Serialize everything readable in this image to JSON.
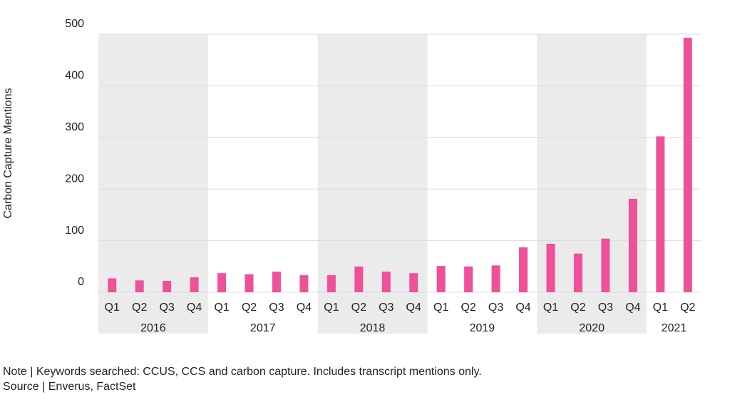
{
  "chart_data": {
    "type": "bar",
    "y_label": "Carbon Capture Mentions",
    "groups": [
      {
        "label": "2016",
        "categories": [
          "Q1",
          "Q2",
          "Q3",
          "Q4"
        ]
      },
      {
        "label": "2017",
        "categories": [
          "Q1",
          "Q2",
          "Q3",
          "Q4"
        ]
      },
      {
        "label": "2018",
        "categories": [
          "Q1",
          "Q2",
          "Q3",
          "Q4"
        ]
      },
      {
        "label": "2019",
        "categories": [
          "Q1",
          "Q2",
          "Q3",
          "Q4"
        ]
      },
      {
        "label": "2020",
        "categories": [
          "Q1",
          "Q2",
          "Q3",
          "Q4"
        ]
      },
      {
        "label": "2021",
        "categories": [
          "Q1",
          "Q2"
        ]
      }
    ],
    "values": [
      27,
      23,
      22,
      29,
      37,
      35,
      40,
      33,
      33,
      50,
      40,
      37,
      51,
      50,
      52,
      87,
      94,
      75,
      104,
      181,
      302,
      493
    ],
    "color": "#f0509a",
    "band_color": "#ebebeb",
    "ylim": [
      0,
      500
    ],
    "yticks": [
      0,
      100,
      200,
      300,
      400,
      500
    ],
    "grid": true,
    "note": "Note | Keywords searched: CCUS, CCS and carbon capture. Includes transcript mentions only.",
    "source": "Source | Enverus, FactSet"
  }
}
